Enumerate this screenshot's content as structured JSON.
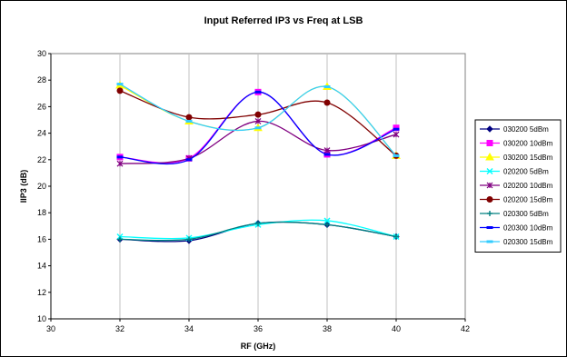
{
  "chart_data": {
    "type": "line",
    "title": "Input Referred IP3 vs Freq at LSB",
    "xlabel": "RF (GHz)",
    "ylabel": "IIP3 (dB)",
    "xlim": [
      30,
      42
    ],
    "ylim": [
      10,
      30
    ],
    "xticks": [
      "30",
      "32",
      "34",
      "36",
      "38",
      "40",
      "42"
    ],
    "yticks": [
      "10",
      "12",
      "14",
      "16",
      "18",
      "20",
      "22",
      "24",
      "26",
      "28",
      "30"
    ],
    "grid": "vertical",
    "legend_position": "right",
    "x": [
      32,
      34,
      36,
      38,
      40
    ],
    "series": [
      {
        "name": "030200 5dBm",
        "color": "#000080",
        "marker": "diamond",
        "values": [
          16.0,
          15.9,
          17.2,
          17.1,
          16.2
        ]
      },
      {
        "name": "030200 10dBm",
        "color": "#ff00ff",
        "marker": "square",
        "values": [
          22.2,
          22.1,
          27.1,
          22.4,
          24.4
        ]
      },
      {
        "name": "030200 15dBm",
        "color": "#ffff00",
        "marker": "triangle",
        "values": [
          27.6,
          24.9,
          24.4,
          27.5,
          22.3
        ]
      },
      {
        "name": "020200 5dBm",
        "color": "#00ffff",
        "marker": "x",
        "values": [
          16.2,
          16.1,
          17.1,
          17.4,
          16.2
        ]
      },
      {
        "name": "020200 10dBm",
        "color": "#800080",
        "marker": "star",
        "values": [
          21.7,
          22.1,
          24.9,
          22.7,
          23.9
        ]
      },
      {
        "name": "020200 15dBm",
        "color": "#800000",
        "marker": "circle",
        "values": [
          27.2,
          25.2,
          25.4,
          26.3,
          22.3
        ]
      },
      {
        "name": "020300 5dBm",
        "color": "#008080",
        "marker": "plus",
        "values": [
          16.0,
          16.0,
          17.2,
          17.1,
          16.2
        ]
      },
      {
        "name": "020300 10dBm",
        "color": "#0000ff",
        "marker": "dash",
        "values": [
          22.2,
          22.0,
          27.1,
          22.4,
          24.3
        ]
      },
      {
        "name": "020300 15dBm",
        "color": "#33ccff",
        "marker": "dash",
        "values": [
          27.7,
          24.9,
          24.4,
          27.5,
          22.3
        ]
      }
    ]
  }
}
